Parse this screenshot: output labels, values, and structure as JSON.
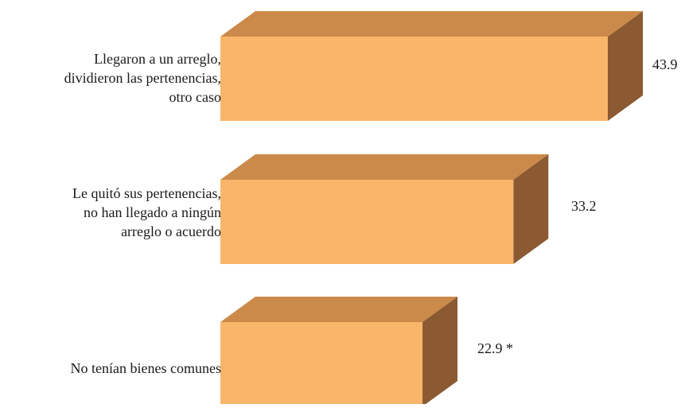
{
  "chart_data": {
    "type": "bar",
    "orientation": "horizontal",
    "style": "3d",
    "categories": [
      "Llegaron a un arreglo,\ndividieron las pertenencias,\notro caso",
      "Le quitó sus pertenencias,\nno han llegado a ningún\narreglo o acuerdo",
      "No tenían bienes comunes"
    ],
    "values": [
      43.9,
      33.2,
      22.9
    ],
    "value_labels": [
      "43.9",
      "33.2",
      "22.9 *"
    ],
    "title": "",
    "xlabel": "",
    "ylabel": "",
    "xlim": [
      0,
      43.9
    ],
    "grid": false,
    "colors": {
      "front": "#F9B56A",
      "top": "#CC8A4A",
      "side": "#8B5A32"
    }
  }
}
